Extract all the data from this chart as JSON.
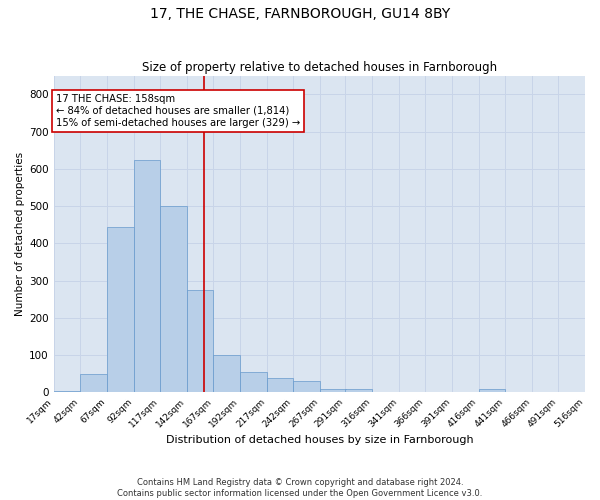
{
  "title": "17, THE CHASE, FARNBOROUGH, GU14 8BY",
  "subtitle": "Size of property relative to detached houses in Farnborough",
  "xlabel": "Distribution of detached houses by size in Farnborough",
  "ylabel": "Number of detached properties",
  "footer_line1": "Contains HM Land Registry data © Crown copyright and database right 2024.",
  "footer_line2": "Contains public sector information licensed under the Open Government Licence v3.0.",
  "annotation_line1": "17 THE CHASE: 158sqm",
  "annotation_line2": "← 84% of detached houses are smaller (1,814)",
  "annotation_line3": "15% of semi-detached houses are larger (329) →",
  "bin_edges": [
    17,
    42,
    67,
    92,
    117,
    142,
    167,
    192,
    217,
    242,
    267,
    291,
    316,
    341,
    366,
    391,
    416,
    441,
    466,
    491,
    516
  ],
  "bar_heights": [
    5,
    50,
    445,
    625,
    500,
    275,
    100,
    55,
    40,
    30,
    10,
    10,
    0,
    0,
    0,
    0,
    10,
    0,
    0,
    0
  ],
  "bar_color": "#b8cfe8",
  "bar_edge_color": "#6699cc",
  "vline_color": "#cc0000",
  "vline_x": 158,
  "annotation_box_color": "#cc0000",
  "ylim": [
    0,
    850
  ],
  "yticks": [
    0,
    100,
    200,
    300,
    400,
    500,
    600,
    700,
    800
  ],
  "grid_color": "#c8d4e8",
  "background_color": "#dbe5f1"
}
